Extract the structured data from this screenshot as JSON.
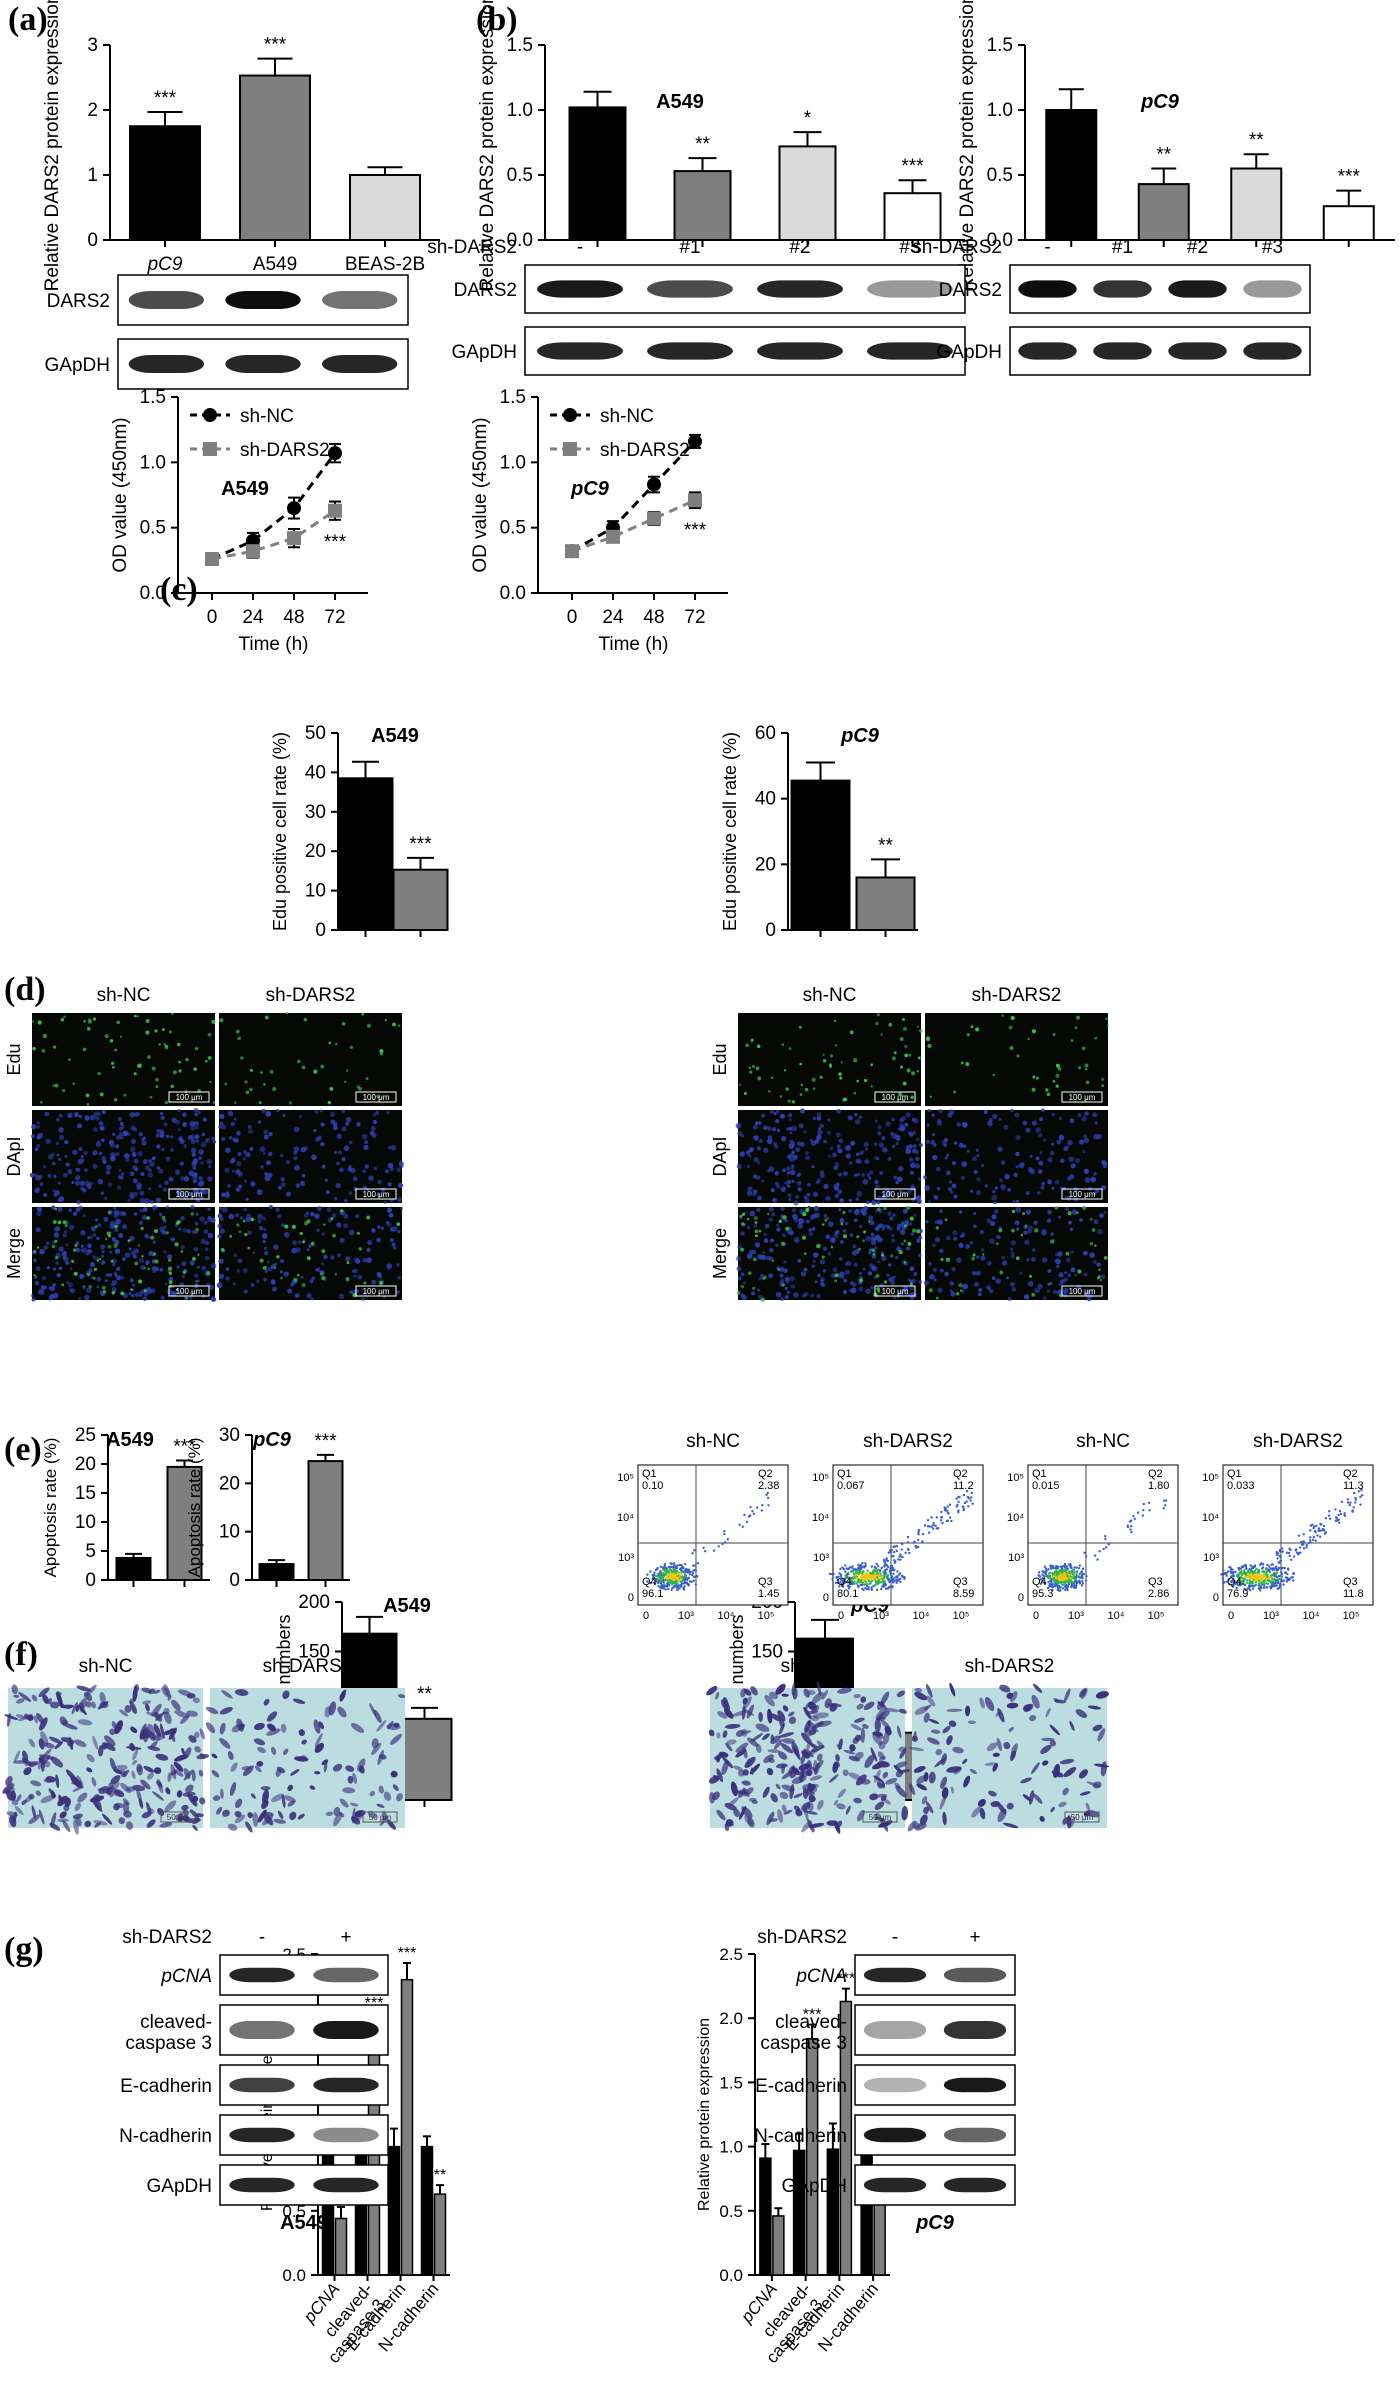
{
  "panels": {
    "a": "(a)",
    "b": "(b)",
    "c": "(c)",
    "d": "(d)",
    "e": "(e)",
    "f": "(f)",
    "g": "(g)"
  },
  "colors": {
    "black": "#000000",
    "darkgray": "#7f7f7f",
    "lightgray": "#d9d9d9",
    "white": "#ffffff",
    "micro_bg": "#050805",
    "edu_green": "#39c44a",
    "dapi_blue": "#2d3fb0",
    "transwell_bg": "#bcdde0",
    "transwell_stain": "#3a2f7a"
  },
  "blots": {
    "a": {
      "rows": [
        "DARS2",
        "GApDH"
      ]
    },
    "b_a549": {
      "rows": [
        "DARS2",
        "GApDH"
      ],
      "shrna_label": "sh-DARS2",
      "lanes": [
        "-",
        "#1",
        "#2",
        "#3"
      ]
    },
    "b_pc9": {
      "rows": [
        "DARS2",
        "GApDH"
      ],
      "shrna_label": "sh-DARS2",
      "lanes": [
        "-",
        "#1",
        "#2",
        "#3"
      ]
    },
    "g_a549": {
      "rows": [
        "pCNA",
        "cleaved-caspase 3",
        "E-cadherin",
        "N-cadherin",
        "GApDH"
      ],
      "shrna_label": "sh-DARS2",
      "lanes": [
        "-",
        "+"
      ],
      "cell": "A549"
    },
    "g_pc9": {
      "rows": [
        "pCNA",
        "cleaved-caspase 3",
        "E-cadherin",
        "N-cadherin",
        "GApDH"
      ],
      "shrna_label": "sh-DARS2",
      "lanes": [
        "-",
        "+"
      ],
      "cell": "pC9"
    }
  },
  "micro": {
    "d": {
      "cols": [
        "sh-NC",
        "sh-DARS2"
      ],
      "rows": [
        "Edu",
        "DApI",
        "Merge"
      ],
      "scale": "100 μm"
    },
    "f": {
      "cols": [
        "sh-NC",
        "sh-DARS2"
      ],
      "scale": "50 μm"
    },
    "flow": {
      "cols": [
        "sh-NC",
        "sh-DARS2",
        "sh-NC",
        "sh-DARS2"
      ],
      "quadrants": [
        {
          "Q1": "0.10",
          "Q2": "2.38",
          "Q3": "1.45",
          "Q4": "96.1"
        },
        {
          "Q1": "0.067",
          "Q2": "11.2",
          "Q3": "8.59",
          "Q4": "80.1"
        },
        {
          "Q1": "0.015",
          "Q2": "1.80",
          "Q3": "2.86",
          "Q4": "95.3"
        },
        {
          "Q1": "0.033",
          "Q2": "11.3",
          "Q3": "11.8",
          "Q4": "76.9"
        }
      ],
      "ticks": [
        "0",
        "10³",
        "10⁴",
        "10⁵"
      ]
    }
  },
  "chart_data": [
    {
      "id": "a",
      "type": "bar",
      "title": "",
      "ylabel": "Relative DARS2 protein expression",
      "ylim": [
        0,
        3
      ],
      "yticks": [
        0,
        1,
        2,
        3
      ],
      "categories": [
        "pC9",
        "A549",
        "BEAS-2B"
      ],
      "values": [
        1.75,
        2.53,
        1.0
      ],
      "errors": [
        0.22,
        0.26,
        0.12
      ],
      "colors": [
        "#000000",
        "#7f7f7f",
        "#d9d9d9"
      ],
      "annotations": [
        "***",
        "***",
        ""
      ]
    },
    {
      "id": "b1",
      "type": "bar",
      "title": "A549",
      "ylabel": "Relative DARS2 protein expression",
      "ylim": [
        0,
        1.5
      ],
      "yticks": [
        "0.0",
        "0.5",
        "1.0",
        "1.5"
      ],
      "categories": [
        "-",
        "#1",
        "#2",
        "#3"
      ],
      "values": [
        1.02,
        0.53,
        0.72,
        0.36
      ],
      "errors": [
        0.12,
        0.1,
        0.11,
        0.1
      ],
      "colors": [
        "#000000",
        "#7f7f7f",
        "#d9d9d9",
        "#ffffff"
      ],
      "annotations": [
        "",
        "**",
        "*",
        "***"
      ]
    },
    {
      "id": "b2",
      "type": "bar",
      "title": "pC9",
      "ylabel": "Relative DARS2 protein expression",
      "ylim": [
        0,
        1.5
      ],
      "yticks": [
        "0.0",
        "0.5",
        "1.0",
        "1.5"
      ],
      "categories": [
        "-",
        "#1",
        "#2",
        "#3"
      ],
      "values": [
        1.0,
        0.43,
        0.55,
        0.26
      ],
      "errors": [
        0.16,
        0.12,
        0.11,
        0.12
      ],
      "colors": [
        "#000000",
        "#7f7f7f",
        "#d9d9d9",
        "#ffffff"
      ],
      "annotations": [
        "",
        "**",
        "**",
        "***"
      ]
    },
    {
      "id": "c1",
      "type": "line",
      "title": "A549",
      "xlabel": "Time (h)",
      "ylabel": "OD value (450nm)",
      "x": [
        0,
        24,
        48,
        72
      ],
      "ylim": [
        0,
        1.5
      ],
      "yticks": [
        "0.0",
        "0.5",
        "1.0",
        "1.5"
      ],
      "series": [
        {
          "name": "sh-NC",
          "values": [
            0.26,
            0.4,
            0.65,
            1.07
          ],
          "errors": [
            0.04,
            0.06,
            0.08,
            0.07
          ],
          "color": "#000000"
        },
        {
          "name": "sh-DARS2",
          "values": [
            0.26,
            0.32,
            0.42,
            0.63
          ],
          "errors": [
            0.04,
            0.05,
            0.07,
            0.07
          ],
          "color": "#7f7f7f"
        }
      ],
      "annotation": "***"
    },
    {
      "id": "c2",
      "type": "line",
      "title": "pC9",
      "xlabel": "Time (h)",
      "ylabel": "OD value (450nm)",
      "x": [
        0,
        24,
        48,
        72
      ],
      "ylim": [
        0,
        1.5
      ],
      "yticks": [
        "0.0",
        "0.5",
        "1.0",
        "1.5"
      ],
      "series": [
        {
          "name": "sh-NC",
          "values": [
            0.32,
            0.5,
            0.83,
            1.16
          ],
          "errors": [
            0.04,
            0.05,
            0.06,
            0.05
          ],
          "color": "#000000"
        },
        {
          "name": "sh-DARS2",
          "values": [
            0.32,
            0.43,
            0.57,
            0.71
          ],
          "errors": [
            0.04,
            0.04,
            0.05,
            0.06
          ],
          "color": "#7f7f7f"
        }
      ],
      "annotation": "***"
    },
    {
      "id": "d1",
      "type": "bar",
      "title": "A549",
      "ylabel": "Edu positive cell rate (%)",
      "ylim": [
        0,
        50
      ],
      "yticks": [
        0,
        10,
        20,
        30,
        40,
        50
      ],
      "categories": [
        "",
        ""
      ],
      "values": [
        38.5,
        15.3
      ],
      "errors": [
        4.2,
        3.0
      ],
      "colors": [
        "#000000",
        "#7f7f7f"
      ],
      "annotations": [
        "",
        "***"
      ]
    },
    {
      "id": "d2",
      "type": "bar",
      "title": "pC9",
      "ylabel": "Edu positive cell rate (%)",
      "ylim": [
        0,
        60
      ],
      "yticks": [
        0,
        20,
        40,
        60
      ],
      "categories": [
        "",
        ""
      ],
      "values": [
        45.5,
        16.0
      ],
      "errors": [
        5.5,
        5.5
      ],
      "colors": [
        "#000000",
        "#7f7f7f"
      ],
      "annotations": [
        "",
        "**"
      ]
    },
    {
      "id": "e1",
      "type": "bar",
      "title": "A549",
      "ylabel": "Apoptosis rate (%)",
      "ylim": [
        0,
        25
      ],
      "yticks": [
        0,
        5,
        10,
        15,
        20,
        25
      ],
      "categories": [
        "",
        ""
      ],
      "values": [
        3.8,
        19.5
      ],
      "errors": [
        0.7,
        1.1
      ],
      "colors": [
        "#000000",
        "#7f7f7f"
      ],
      "annotations": [
        "",
        "***"
      ]
    },
    {
      "id": "e2",
      "type": "bar",
      "title": "pC9",
      "ylabel": "Apoptosis rate (%)",
      "ylim": [
        0,
        30
      ],
      "yticks": [
        0,
        10,
        20,
        30
      ],
      "categories": [
        "",
        ""
      ],
      "values": [
        3.3,
        24.6
      ],
      "errors": [
        0.8,
        1.3
      ],
      "colors": [
        "#000000",
        "#7f7f7f"
      ],
      "annotations": [
        "",
        "***"
      ]
    },
    {
      "id": "f1",
      "type": "bar",
      "title": "A549",
      "ylabel": "Invasive cell numbers",
      "ylim": [
        0,
        200
      ],
      "yticks": [
        0,
        50,
        100,
        150,
        200
      ],
      "categories": [
        "",
        ""
      ],
      "values": [
        168,
        82
      ],
      "errors": [
        17,
        11
      ],
      "colors": [
        "#000000",
        "#7f7f7f"
      ],
      "annotations": [
        "",
        "**"
      ]
    },
    {
      "id": "f2",
      "type": "bar",
      "title": "pC9",
      "ylabel": "Invasive cell numbers",
      "ylim": [
        0,
        200
      ],
      "yticks": [
        0,
        50,
        100,
        150,
        200
      ],
      "categories": [
        "",
        ""
      ],
      "values": [
        163,
        68
      ],
      "errors": [
        19,
        18
      ],
      "colors": [
        "#000000",
        "#7f7f7f"
      ],
      "annotations": [
        "",
        "**"
      ]
    },
    {
      "id": "g1",
      "type": "bar",
      "title": "",
      "ylabel": "Relative protein expression",
      "ylim": [
        0,
        2.5
      ],
      "yticks": [
        "0.0",
        "0.5",
        "1.0",
        "1.5",
        "2.0",
        "2.5"
      ],
      "categories": [
        "pCNA",
        "cleaved-caspase 3",
        "E-cadherin",
        "N-cadherin"
      ],
      "series": [
        {
          "name": "",
          "values": [
            0.98,
            1.0,
            1.0,
            1.0
          ],
          "errors": [
            0.13,
            0.15,
            0.14,
            0.08
          ],
          "color": "#000000"
        },
        {
          "name": "",
          "values": [
            0.44,
            1.97,
            2.3,
            0.63
          ],
          "errors": [
            0.09,
            0.07,
            0.13,
            0.07
          ],
          "color": "#7f7f7f"
        }
      ],
      "annotations": [
        "***",
        "***",
        "***",
        "**"
      ]
    },
    {
      "id": "g2",
      "type": "bar",
      "title": "",
      "ylabel": "Relative protein expression",
      "ylim": [
        0,
        2.5
      ],
      "yticks": [
        "0.0",
        "0.5",
        "1.0",
        "1.5",
        "2.0",
        "2.5"
      ],
      "categories": [
        "pCNA",
        "cleaved-caspase 3",
        "E-cadherin",
        "N-cadherin"
      ],
      "series": [
        {
          "name": "",
          "values": [
            0.91,
            0.97,
            0.98,
            0.98
          ],
          "errors": [
            0.11,
            0.13,
            0.2,
            0.1
          ],
          "color": "#000000"
        },
        {
          "name": "",
          "values": [
            0.46,
            1.84,
            2.13,
            0.55
          ],
          "errors": [
            0.06,
            0.11,
            0.1,
            0.09
          ],
          "color": "#7f7f7f"
        }
      ],
      "annotations": [
        "",
        "***",
        "***",
        "**"
      ]
    }
  ]
}
